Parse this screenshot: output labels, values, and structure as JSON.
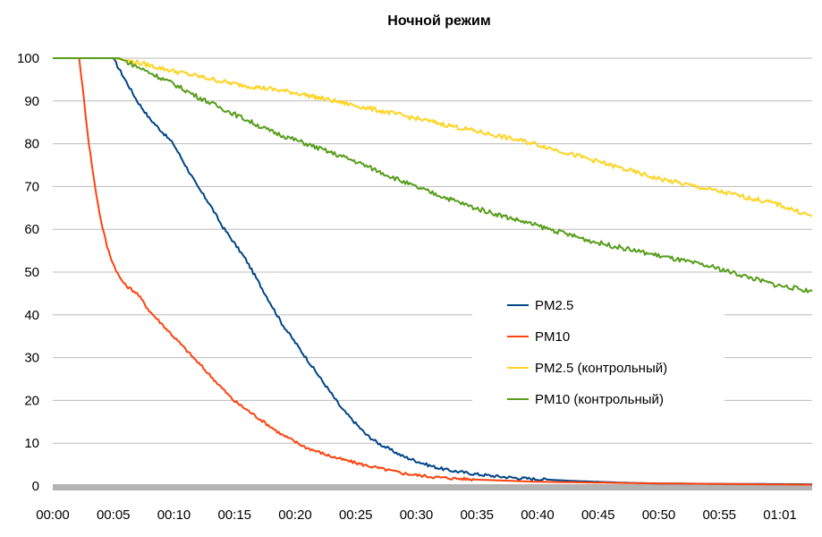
{
  "chart_data": {
    "type": "line",
    "title": "Ночной режим",
    "xlabel": "",
    "ylabel": "",
    "x_ticks": [
      "00:00",
      "00:05",
      "00:10",
      "00:15",
      "00:20",
      "00:25",
      "00:30",
      "00:35",
      "00:40",
      "00:45",
      "00:50",
      "00:55",
      "01:01"
    ],
    "y_ticks": [
      0,
      10,
      20,
      30,
      40,
      50,
      60,
      70,
      80,
      90,
      100
    ],
    "xlim_minutes": [
      0,
      63
    ],
    "ylim": [
      0,
      100
    ],
    "grid": "horizontal",
    "legend_position": "center-right",
    "series": [
      {
        "name": "PM2.5",
        "color": "#004586",
        "points": [
          [
            0,
            100
          ],
          [
            5,
            100
          ],
          [
            6,
            95
          ],
          [
            7,
            90
          ],
          [
            8,
            86
          ],
          [
            9,
            83
          ],
          [
            10,
            80
          ],
          [
            11,
            75
          ],
          [
            12,
            70
          ],
          [
            13,
            66
          ],
          [
            14,
            61
          ],
          [
            15,
            57
          ],
          [
            16,
            53
          ],
          [
            17,
            48
          ],
          [
            18,
            43
          ],
          [
            19,
            38
          ],
          [
            20,
            34
          ],
          [
            21,
            30
          ],
          [
            22,
            26
          ],
          [
            23,
            22
          ],
          [
            24,
            18
          ],
          [
            25,
            15
          ],
          [
            26,
            12
          ],
          [
            27,
            10
          ],
          [
            28,
            8.5
          ],
          [
            29,
            7
          ],
          [
            30,
            6
          ],
          [
            31,
            5
          ],
          [
            32,
            4.2
          ],
          [
            33,
            3.6
          ],
          [
            35,
            2.8
          ],
          [
            37,
            2.2
          ],
          [
            39,
            1.8
          ],
          [
            41,
            1.5
          ],
          [
            43,
            1.2
          ],
          [
            45,
            1
          ],
          [
            47,
            0.8
          ],
          [
            50,
            0.6
          ],
          [
            55,
            0.5
          ],
          [
            63,
            0.4
          ]
        ]
      },
      {
        "name": "PM10",
        "color": "#ff420e",
        "points": [
          [
            0,
            100
          ],
          [
            2.2,
            100
          ],
          [
            2.6,
            90
          ],
          [
            3,
            80
          ],
          [
            3.5,
            70
          ],
          [
            4,
            62
          ],
          [
            4.5,
            56
          ],
          [
            5,
            52
          ],
          [
            5.5,
            49
          ],
          [
            6,
            47
          ],
          [
            7,
            45
          ],
          [
            7.5,
            43
          ],
          [
            8,
            41
          ],
          [
            9,
            38
          ],
          [
            10,
            35
          ],
          [
            11,
            32
          ],
          [
            12,
            29
          ],
          [
            13,
            26
          ],
          [
            14,
            23
          ],
          [
            15,
            20
          ],
          [
            16,
            18
          ],
          [
            17,
            16
          ],
          [
            18,
            14
          ],
          [
            19,
            12
          ],
          [
            20,
            10.5
          ],
          [
            21,
            9
          ],
          [
            22,
            8
          ],
          [
            23,
            7
          ],
          [
            24,
            6.2
          ],
          [
            25,
            5.5
          ],
          [
            26,
            4.8
          ],
          [
            27,
            4.2
          ],
          [
            28,
            3.6
          ],
          [
            29,
            3
          ],
          [
            30,
            2.6
          ],
          [
            32,
            2
          ],
          [
            35,
            1.5
          ],
          [
            40,
            1
          ],
          [
            45,
            0.8
          ],
          [
            50,
            0.6
          ],
          [
            63,
            0.3
          ]
        ]
      },
      {
        "name": "PM2.5 (контрольный)",
        "color": "#ffd320",
        "points": [
          [
            0,
            100
          ],
          [
            5,
            100
          ],
          [
            7,
            99
          ],
          [
            10,
            97
          ],
          [
            15,
            94
          ],
          [
            20,
            92
          ],
          [
            25,
            89
          ],
          [
            30,
            86
          ],
          [
            35,
            83
          ],
          [
            40,
            80
          ],
          [
            45,
            76
          ],
          [
            50,
            72
          ],
          [
            55,
            69
          ],
          [
            60,
            66
          ],
          [
            63,
            63
          ]
        ]
      },
      {
        "name": "PM10 (контрольный)",
        "color": "#579d1c",
        "points": [
          [
            0,
            100
          ],
          [
            5.5,
            100
          ],
          [
            7,
            98
          ],
          [
            10,
            94
          ],
          [
            12,
            91
          ],
          [
            15,
            87
          ],
          [
            18,
            83
          ],
          [
            20,
            81
          ],
          [
            25,
            76
          ],
          [
            30,
            70
          ],
          [
            35,
            65
          ],
          [
            40,
            61
          ],
          [
            45,
            57
          ],
          [
            50,
            54
          ],
          [
            55,
            51
          ],
          [
            60,
            47
          ],
          [
            63,
            45.5
          ]
        ]
      }
    ]
  }
}
